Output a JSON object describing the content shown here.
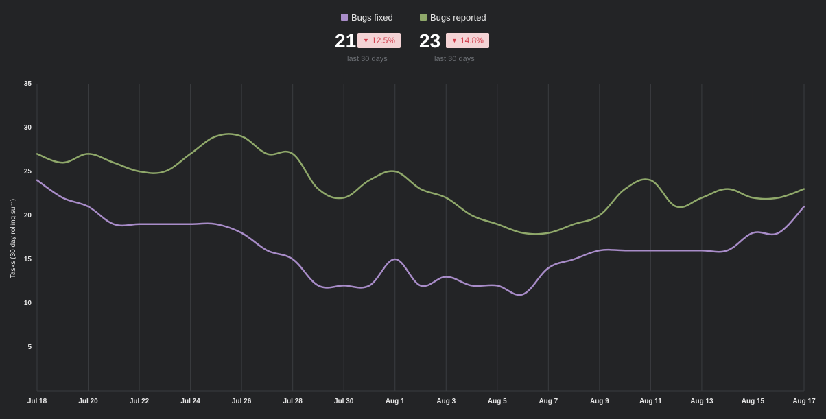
{
  "legend": [
    {
      "name": "Bugs fixed",
      "color": "#a88cc8"
    },
    {
      "name": "Bugs reported",
      "color": "#8fa86a"
    }
  ],
  "stats": [
    {
      "value": "21",
      "change": "12.5%",
      "period": "last 30 days"
    },
    {
      "value": "23",
      "change": "14.8%",
      "period": "last 30 days"
    }
  ],
  "chart_data": {
    "type": "line",
    "ylabel": "Tasks (30 day rolling sum)",
    "xlabel": "",
    "ylim": [
      0,
      35
    ],
    "yticks": [
      5,
      10,
      15,
      20,
      25,
      30,
      35
    ],
    "x": [
      "Jul 18",
      "Jul 19",
      "Jul 20",
      "Jul 21",
      "Jul 22",
      "Jul 23",
      "Jul 24",
      "Jul 25",
      "Jul 26",
      "Jul 27",
      "Jul 28",
      "Jul 29",
      "Jul 30",
      "Jul 31",
      "Aug 1",
      "Aug 2",
      "Aug 3",
      "Aug 4",
      "Aug 5",
      "Aug 6",
      "Aug 7",
      "Aug 8",
      "Aug 9",
      "Aug 10",
      "Aug 11",
      "Aug 12",
      "Aug 13",
      "Aug 14",
      "Aug 15",
      "Aug 16",
      "Aug 17"
    ],
    "xticks": [
      "Jul 18",
      "Jul 20",
      "Jul 22",
      "Jul 24",
      "Jul 26",
      "Jul 28",
      "Jul 30",
      "Aug 1",
      "Aug 3",
      "Aug 5",
      "Aug 7",
      "Aug 9",
      "Aug 11",
      "Aug 13",
      "Aug 15",
      "Aug 17"
    ],
    "grid": true,
    "series": [
      {
        "name": "Bugs fixed",
        "color": "#a88cc8",
        "values": [
          24,
          22,
          21,
          19,
          19,
          19,
          19,
          19,
          18,
          16,
          15,
          12,
          12,
          12,
          15,
          12,
          13,
          12,
          12,
          11,
          14,
          15,
          16,
          16,
          16,
          16,
          16,
          16,
          18,
          18,
          21
        ]
      },
      {
        "name": "Bugs reported",
        "color": "#8fa86a",
        "values": [
          27,
          26,
          27,
          26,
          25,
          25,
          27,
          29,
          29,
          27,
          27,
          23,
          22,
          24,
          25,
          23,
          22,
          20,
          19,
          18,
          18,
          19,
          20,
          23,
          24,
          21,
          22,
          23,
          22,
          22,
          23
        ]
      }
    ]
  }
}
